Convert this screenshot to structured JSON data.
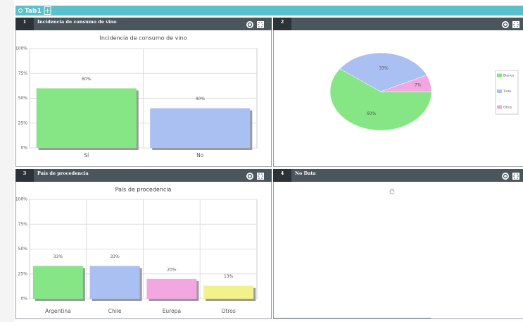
{
  "tab": {
    "label": "Tab1",
    "add": "+"
  },
  "panels": [
    {
      "number": "1",
      "title": "Incidencia de consumo de vino"
    },
    {
      "number": "2"
    },
    {
      "number": "3",
      "title": "País de procedencia"
    },
    {
      "number": "4",
      "title": "No Data"
    }
  ],
  "chart_data": [
    {
      "type": "bar",
      "title": "Incidencia de consumo de vino",
      "categories": [
        "Sí",
        "No"
      ],
      "values": [
        60,
        40
      ],
      "value_labels": [
        "60%",
        "40%"
      ],
      "colors": [
        "#86e686",
        "#aabff2"
      ],
      "ylim": [
        0,
        100
      ],
      "yticks": [
        {
          "value": 0,
          "label": "0%"
        },
        {
          "value": 25,
          "label": "25%"
        },
        {
          "value": 50,
          "label": "50%"
        },
        {
          "value": 75,
          "label": "75%"
        },
        {
          "value": 100,
          "label": "100%"
        }
      ],
      "grid": true
    },
    {
      "type": "pie",
      "categories": [
        "Blanco",
        "Tinto",
        "Otros"
      ],
      "values": [
        60,
        33,
        7
      ],
      "value_labels": [
        "60%",
        "33%",
        "7%"
      ],
      "colors": [
        "#86e686",
        "#aabff2",
        "#f2a7e0"
      ],
      "legend": "right"
    },
    {
      "type": "bar",
      "title": "País de procedencia",
      "categories": [
        "Argentina",
        "Chile",
        "Europa",
        "Otros"
      ],
      "values": [
        33,
        33,
        20,
        13
      ],
      "value_labels": [
        "33%",
        "33%",
        "20%",
        "13%"
      ],
      "colors": [
        "#86e686",
        "#aabff2",
        "#f2a7e0",
        "#f2f28a"
      ],
      "ylim": [
        0,
        100
      ],
      "yticks": [
        {
          "value": 0,
          "label": "0%"
        },
        {
          "value": 25,
          "label": "25%"
        },
        {
          "value": 50,
          "label": "50%"
        },
        {
          "value": 75,
          "label": "75%"
        },
        {
          "value": 100,
          "label": "100%"
        }
      ],
      "grid": true
    }
  ]
}
